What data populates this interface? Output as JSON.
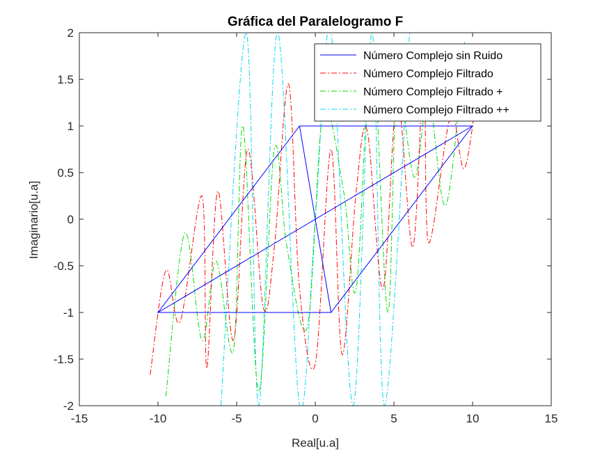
{
  "chart_data": {
    "type": "line",
    "title": "Gráfica del Paralelogramo F",
    "xlabel": "Real[u.a]",
    "ylabel": "Imaginario[u.a]",
    "xlim": [
      -15,
      15
    ],
    "ylim": [
      -2,
      2
    ],
    "xticks": [
      -15,
      -10,
      -5,
      0,
      5,
      10,
      15
    ],
    "yticks": [
      -2,
      -1.5,
      -1,
      -0.5,
      0,
      0.5,
      1,
      1.5,
      2
    ],
    "xtick_labels": [
      "-15",
      "-10",
      "-5",
      "0",
      "5",
      "10",
      "15"
    ],
    "ytick_labels": [
      "-2",
      "-1.5",
      "-1",
      "-0.5",
      "0",
      "0.5",
      "1",
      "1.5",
      "2"
    ],
    "grid": false,
    "legend_position": "top-right",
    "series": [
      {
        "name": "Número Complejo sin Ruido",
        "color": "#0000ff",
        "style": "solid",
        "x": [
          -10,
          -1,
          10,
          1,
          -10,
          10,
          1,
          -1
        ],
        "y": [
          -1,
          1,
          1,
          -1,
          -1,
          1,
          -1,
          1
        ]
      },
      {
        "name": "Número Complejo Filtrado",
        "color": "#ff0000",
        "style": "dashdot",
        "x": [
          -10.5,
          -9.5,
          -8.6,
          -7.2,
          -6.9,
          -6.2,
          -5.2,
          -4.3,
          -3.3,
          -2.6,
          -1.7,
          -1.0,
          0.0,
          1.0,
          1.7,
          2.6,
          3.3,
          4.3,
          5.2,
          6.2,
          6.9,
          7.2,
          8.6,
          9.5,
          10.5
        ],
        "y": [
          -1.67,
          -0.55,
          -1.1,
          0.25,
          -1.6,
          0.3,
          -1.3,
          0.75,
          -0.95,
          -0.3,
          1.45,
          -0.75,
          -1.55,
          0.75,
          -1.45,
          0.3,
          0.95,
          -0.75,
          1.3,
          -0.3,
          1.6,
          -0.25,
          1.1,
          0.55,
          1.67
        ]
      },
      {
        "name": "Número Complejo Filtrado +",
        "color": "#00dd00",
        "style": "dashdot",
        "x": [
          -9.5,
          -8.3,
          -7.2,
          -6.3,
          -5.2,
          -4.6,
          -3.6,
          -2.6,
          -1.8,
          -0.5,
          0.5,
          1.8,
          2.6,
          3.6,
          4.6,
          5.2,
          6.3,
          7.2,
          8.3,
          9.5
        ],
        "y": [
          -1.9,
          -0.15,
          -1.3,
          -0.45,
          -1.4,
          1.0,
          -1.85,
          0.75,
          -0.3,
          -1.15,
          1.15,
          0.3,
          -0.75,
          1.85,
          -1.0,
          1.4,
          0.45,
          1.3,
          0.15,
          1.9
        ]
      },
      {
        "name": "Número Complejo Filtrado ++",
        "color": "#00d7ee",
        "style": "dashdot",
        "x": [
          -6.0,
          -4.4,
          -3.6,
          -2.4,
          -1.0,
          0.0,
          1.0,
          2.4,
          3.6,
          4.4,
          6.0
        ],
        "y": [
          -2.0,
          2.0,
          -2.0,
          2.0,
          -2.0,
          0.0,
          2.0,
          -2.0,
          2.0,
          -2.0,
          2.0
        ]
      }
    ]
  }
}
